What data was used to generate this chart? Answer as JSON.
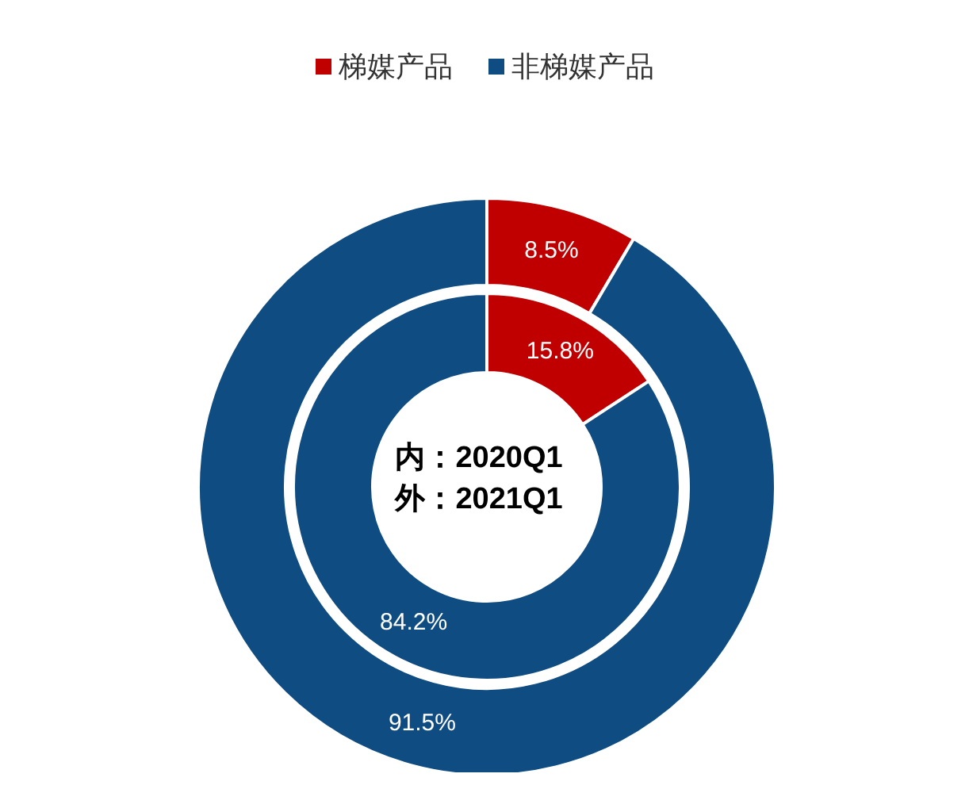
{
  "chart_data": {
    "type": "donut",
    "categories": [
      "梯媒产品",
      "非梯媒产品"
    ],
    "colors": [
      "#c00000",
      "#0f4c81"
    ],
    "series": [
      {
        "values": [
          15.8,
          84.2
        ],
        "value_labels": [
          "15.8%",
          "84.2%"
        ]
      },
      {
        "values": [
          8.5,
          91.5
        ],
        "value_labels": [
          "8.5%",
          "91.5%"
        ]
      }
    ],
    "annotations": [
      "内：2020Q1",
      "外：2021Q1"
    ],
    "legend": "top"
  }
}
